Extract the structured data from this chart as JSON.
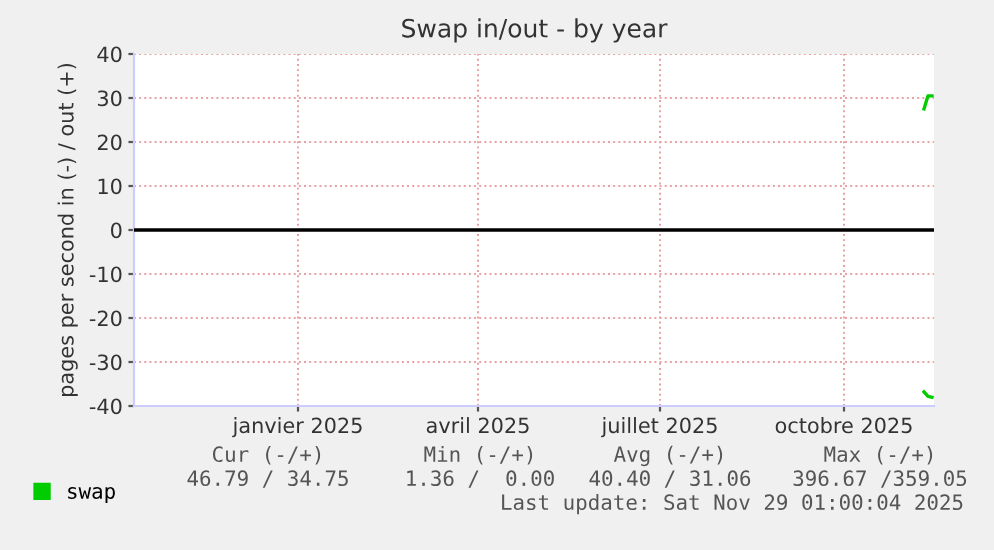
{
  "chart_data": {
    "type": "line",
    "title": "Swap in/out - by year",
    "ylabel": "pages per second in (-) / out (+)",
    "xlim": [
      "2024-10-25",
      "2025-11-29"
    ],
    "xticks": [
      {
        "value": "2025-01-15",
        "label": "janvier 2025"
      },
      {
        "value": "2025-04-15",
        "label": "avril 2025"
      },
      {
        "value": "2025-07-15",
        "label": "juillet 2025"
      },
      {
        "value": "2025-10-15",
        "label": "octobre 2025"
      }
    ],
    "ylim": [
      -40,
      40
    ],
    "yticks": [
      -40,
      -30,
      -20,
      -10,
      0,
      10,
      20,
      30,
      40
    ],
    "grid": true,
    "legend": "bottom",
    "series": [
      {
        "name": "swap",
        "color": "#00cc00",
        "x": [
          "2025-11-24",
          "2025-11-26",
          "2025-11-28"
        ],
        "values": [
          27.5,
          30.5,
          30.5
        ]
      },
      {
        "color": "#00cc00",
        "x": [
          "2025-11-24",
          "2025-11-26",
          "2025-11-28"
        ],
        "values": [
          -36.8,
          -37.8,
          -38
        ]
      }
    ],
    "ref_lines": [
      {
        "axis": "y",
        "value": 0,
        "color": "#000000"
      }
    ],
    "annotations": [
      "Cur (-/+)",
      "Min (-/+)",
      "Avg (-/+)",
      "Max (-/+)",
      "46.79 / 34.75",
      "1.36 /  0.00",
      "40.40 / 31.06",
      "396.67 /359.05",
      "Last update: Sat Nov 29 01:00:04 2025"
    ]
  }
}
